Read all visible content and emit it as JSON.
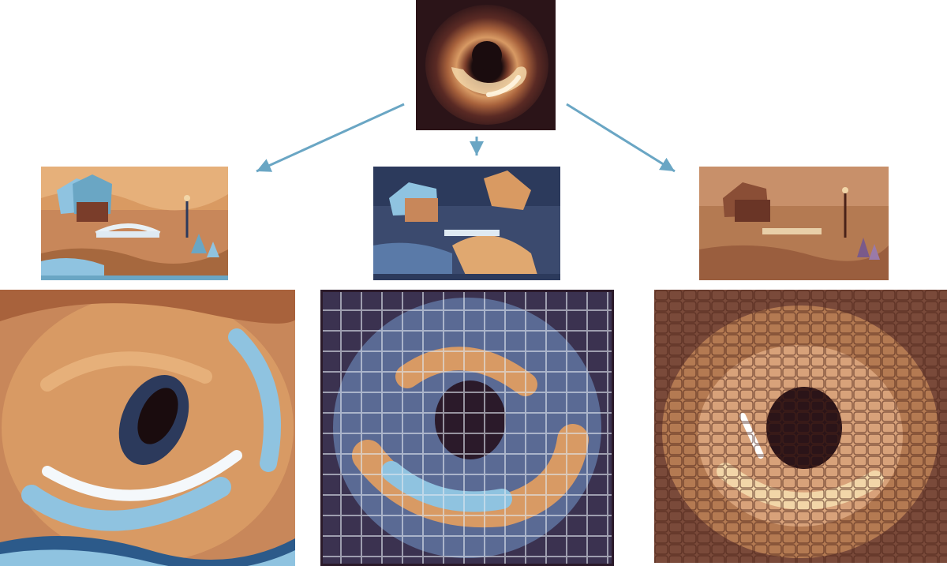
{
  "colors": {
    "arrow": "#6aa6c4",
    "dark": "#2b1418",
    "copper": "#c8875a",
    "cream": "#f2d6a8",
    "sky_blue": "#8fc3e0",
    "navy": "#2c3a5c"
  },
  "figure": {
    "content": {
      "semantic": "black-hole-photo"
    },
    "styles": [
      {
        "semantic": "stylized-park-cottage-bridge-swirl"
      },
      {
        "semantic": "stylized-park-cottage-bridge-mosaic"
      },
      {
        "semantic": "stylized-park-cottage-bridge-crosshatch"
      }
    ],
    "results": [
      {
        "semantic": "black-hole-swirl-brushstrokes"
      },
      {
        "semantic": "black-hole-mosaic-tiles"
      },
      {
        "semantic": "black-hole-cobblestone-texture"
      }
    ]
  }
}
